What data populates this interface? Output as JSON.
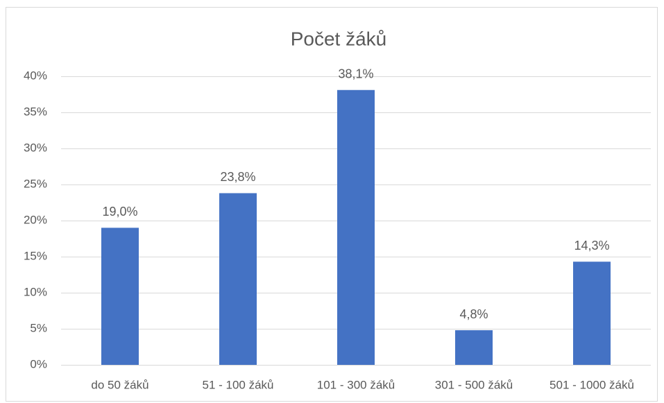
{
  "chart_data": {
    "type": "bar",
    "title": "Počet žáků",
    "categories": [
      "do 50 žáků",
      "51 - 100 žáků",
      "101 - 300 žáků",
      "301 - 500 žáků",
      "501 - 1000 žáků"
    ],
    "values": [
      19.0,
      23.8,
      38.1,
      4.8,
      14.3
    ],
    "value_labels": [
      "19,0%",
      "23,8%",
      "38,1%",
      "4,8%",
      "14,3%"
    ],
    "color": "#4472c4",
    "ylim": [
      0,
      40
    ],
    "yticks": [
      {
        "value": 0,
        "label": "0%"
      },
      {
        "value": 5,
        "label": "5%"
      },
      {
        "value": 10,
        "label": "10%"
      },
      {
        "value": 15,
        "label": "15%"
      },
      {
        "value": 20,
        "label": "20%"
      },
      {
        "value": 25,
        "label": "25%"
      },
      {
        "value": 30,
        "label": "30%"
      },
      {
        "value": 35,
        "label": "35%"
      },
      {
        "value": 40,
        "label": "40%"
      }
    ],
    "grid": true
  }
}
